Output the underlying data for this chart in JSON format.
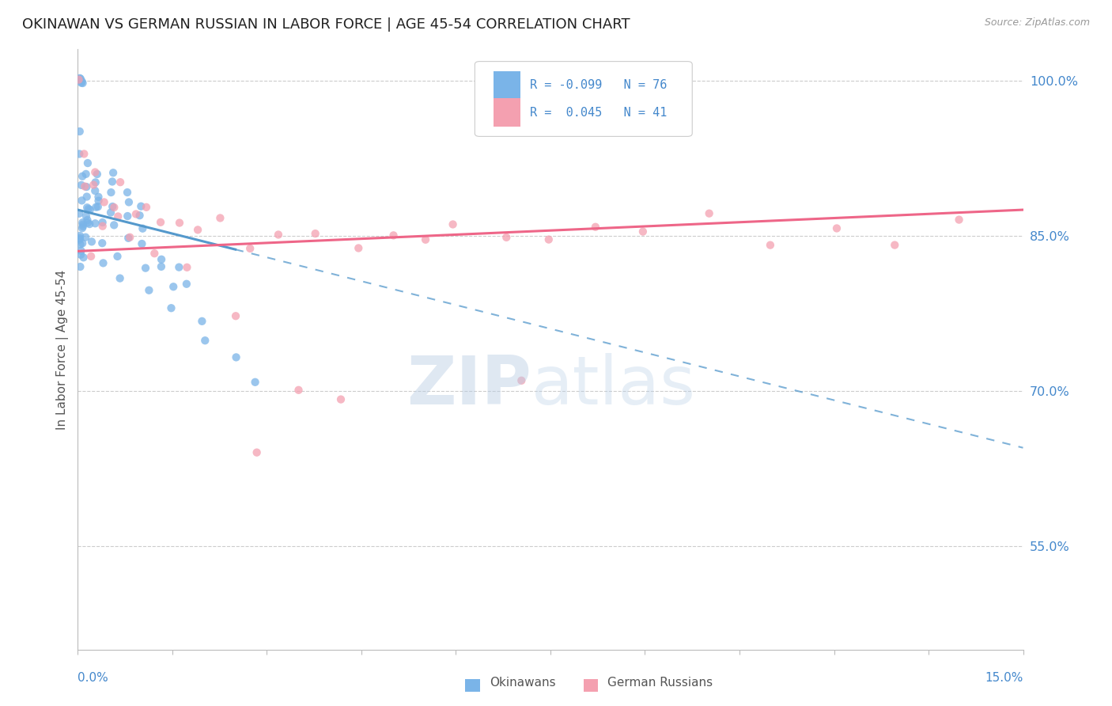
{
  "title": "OKINAWAN VS GERMAN RUSSIAN IN LABOR FORCE | AGE 45-54 CORRELATION CHART",
  "source": "Source: ZipAtlas.com",
  "ylabel": "In Labor Force | Age 45-54",
  "legend_label_okinawan": "Okinawans",
  "legend_label_german": "German Russians",
  "r_okinawan": -0.099,
  "n_okinawan": 76,
  "r_german": 0.045,
  "n_german": 41,
  "xmin": 0.0,
  "xmax": 15.0,
  "ymin": 45.0,
  "ymax": 103.0,
  "yticks": [
    55.0,
    70.0,
    85.0,
    100.0
  ],
  "color_okinawan": "#7ab4e8",
  "color_german": "#f4a0b0",
  "color_trend_okinawan": "#5599cc",
  "color_trend_german": "#ee6688",
  "color_axis_labels": "#4488cc",
  "okinawan_x": [
    0.05,
    0.05,
    0.05,
    0.05,
    0.05,
    0.05,
    0.05,
    0.05,
    0.05,
    0.05,
    0.05,
    0.05,
    0.05,
    0.05,
    0.05,
    0.05,
    0.05,
    0.05,
    0.05,
    0.05,
    0.15,
    0.15,
    0.15,
    0.15,
    0.15,
    0.15,
    0.15,
    0.15,
    0.15,
    0.15,
    0.3,
    0.3,
    0.3,
    0.3,
    0.3,
    0.3,
    0.3,
    0.3,
    0.55,
    0.55,
    0.55,
    0.55,
    0.55,
    0.55,
    0.8,
    0.8,
    0.8,
    0.8,
    1.0,
    1.0,
    1.0,
    1.0,
    1.3,
    1.3,
    1.6,
    1.7,
    0.1,
    0.1,
    0.1,
    0.1,
    0.2,
    0.2,
    0.2,
    0.4,
    0.4,
    0.4,
    0.65,
    0.65,
    1.1,
    1.1,
    1.5,
    1.5,
    2.0,
    2.0,
    2.5,
    2.8
  ],
  "okinawan_y": [
    100.0,
    100.0,
    100.0,
    100.0,
    100.0,
    95.0,
    93.0,
    91.0,
    90.0,
    88.5,
    87.0,
    86.0,
    85.5,
    85.0,
    85.0,
    84.5,
    84.0,
    83.5,
    83.0,
    82.0,
    92.0,
    91.0,
    90.0,
    89.0,
    88.0,
    87.5,
    87.0,
    86.5,
    86.0,
    85.0,
    91.0,
    90.0,
    89.5,
    89.0,
    88.5,
    88.0,
    87.5,
    86.0,
    91.0,
    90.0,
    89.0,
    88.0,
    87.0,
    86.0,
    89.0,
    88.0,
    87.0,
    85.0,
    88.0,
    87.0,
    85.5,
    84.0,
    83.0,
    82.0,
    82.0,
    80.5,
    86.5,
    86.0,
    84.0,
    83.0,
    87.5,
    86.0,
    84.5,
    86.0,
    84.0,
    82.5,
    83.0,
    81.0,
    82.0,
    80.0,
    80.0,
    78.0,
    77.0,
    75.0,
    73.0,
    71.0
  ],
  "german_x": [
    0.05,
    0.1,
    0.2,
    0.3,
    0.4,
    0.55,
    0.7,
    0.9,
    1.1,
    1.3,
    1.6,
    1.9,
    2.3,
    2.7,
    3.2,
    3.8,
    4.5,
    5.0,
    5.5,
    6.0,
    6.8,
    7.5,
    8.2,
    9.0,
    10.0,
    11.0,
    12.0,
    13.0,
    14.0,
    0.15,
    0.35,
    0.6,
    0.85,
    1.2,
    1.7,
    2.5,
    3.5,
    4.2,
    0.25,
    2.8,
    7.0
  ],
  "german_y": [
    100.0,
    93.0,
    90.0,
    91.0,
    88.0,
    87.5,
    90.0,
    87.0,
    88.0,
    86.5,
    86.0,
    85.5,
    87.0,
    84.0,
    85.0,
    85.5,
    84.0,
    85.0,
    84.5,
    86.0,
    85.0,
    84.5,
    86.0,
    85.5,
    87.0,
    84.0,
    85.5,
    84.0,
    86.5,
    90.0,
    86.0,
    87.0,
    85.0,
    83.0,
    82.0,
    77.0,
    70.0,
    69.0,
    83.0,
    64.0,
    71.0
  ],
  "trend_ok_x0": 0.0,
  "trend_ok_y0": 87.5,
  "trend_ok_x1": 15.0,
  "trend_ok_y1": 64.5,
  "trend_ok_solid_end": 2.5,
  "trend_ge_x0": 0.0,
  "trend_ge_y0": 83.5,
  "trend_ge_x1": 15.0,
  "trend_ge_y1": 87.5
}
